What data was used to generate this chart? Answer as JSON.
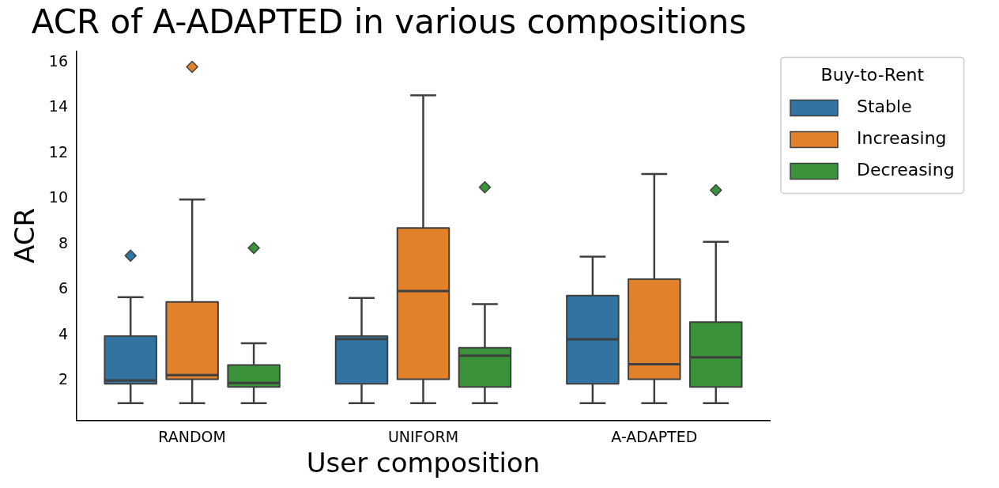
{
  "chart_data": {
    "type": "box",
    "title": "ACR of A-ADAPTED in various compositions",
    "xlabel": "User composition",
    "ylabel": "ACR",
    "legend_title": "Buy-to-Rent",
    "legend": "right",
    "grid": false,
    "categories": [
      "RANDOM",
      "UNIFORM",
      "A-ADAPTED"
    ],
    "ylim": [
      0.25,
      16.5
    ],
    "yticks": [
      2,
      4,
      6,
      8,
      10,
      12,
      14,
      16
    ],
    "series": [
      {
        "name": "Stable",
        "color": "#3274a1",
        "boxes": [
          {
            "low": 1,
            "q1": 1.86,
            "median": 2.0,
            "q3": 3.95,
            "high": 5.67,
            "outliers": [
              7.49
            ]
          },
          {
            "low": 1,
            "q1": 1.86,
            "median": 3.82,
            "q3": 3.95,
            "high": 5.63
          },
          {
            "low": 1,
            "q1": 1.86,
            "median": 3.81,
            "q3": 5.74,
            "high": 7.45
          }
        ]
      },
      {
        "name": "Increasing",
        "color": "#e1812c",
        "boxes": [
          {
            "low": 1,
            "q1": 2.06,
            "median": 2.24,
            "q3": 5.46,
            "high": 9.96,
            "outliers": [
              15.8
            ]
          },
          {
            "low": 1,
            "q1": 2.06,
            "median": 5.94,
            "q3": 8.71,
            "high": 14.55
          },
          {
            "low": 1,
            "q1": 2.06,
            "median": 2.72,
            "q3": 6.46,
            "high": 11.09
          }
        ]
      },
      {
        "name": "Decreasing",
        "color": "#3a923a",
        "boxes": [
          {
            "low": 1,
            "q1": 1.72,
            "median": 1.89,
            "q3": 2.68,
            "high": 3.64,
            "outliers": [
              7.83
            ]
          },
          {
            "low": 1,
            "q1": 1.72,
            "median": 3.09,
            "q3": 3.44,
            "high": 5.36,
            "outliers": [
              10.5
            ]
          },
          {
            "low": 1,
            "q1": 1.72,
            "median": 3.02,
            "q3": 4.57,
            "high": 8.1,
            "outliers": [
              10.37
            ]
          }
        ]
      }
    ]
  }
}
